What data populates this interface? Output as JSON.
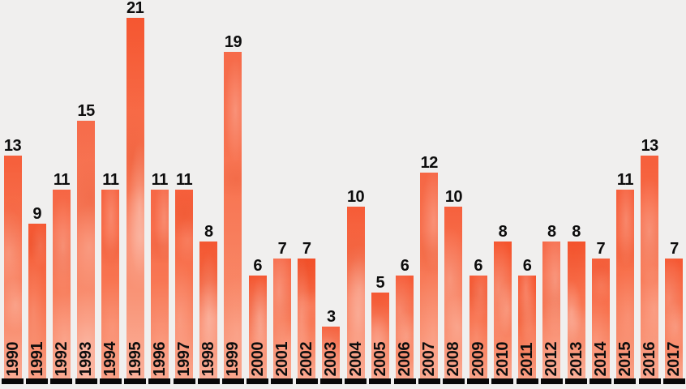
{
  "chart_data": {
    "type": "bar",
    "categories": [
      "1990",
      "1991",
      "1992",
      "1993",
      "1994",
      "1995",
      "1996",
      "1997",
      "1998",
      "1999",
      "2000",
      "2001",
      "2002",
      "2003",
      "2004",
      "2005",
      "2006",
      "2007",
      "2008",
      "2009",
      "2010",
      "2011",
      "2012",
      "2013",
      "2014",
      "2015",
      "2016",
      "2017"
    ],
    "values": [
      13,
      9,
      11,
      15,
      11,
      21,
      11,
      11,
      8,
      19,
      6,
      7,
      7,
      3,
      10,
      5,
      6,
      12,
      10,
      6,
      8,
      6,
      8,
      8,
      7,
      11,
      13,
      7
    ],
    "title": "",
    "xlabel": "",
    "ylabel": "",
    "ylim": [
      0,
      21
    ],
    "grid": false,
    "legend": "none",
    "bar_value_labels_shown": true,
    "x_tick_label_rotation_deg": -90,
    "x_tick_label_position": "inside-bar-bottom"
  },
  "palette": {
    "background": "#f0efee",
    "bar_gradient_top": "#f5512a",
    "bar_gradient_mid": "#f7653e",
    "bar_gradient_low": "#f87e5b",
    "bar_gradient_bottom": "#f99a7e",
    "watercolor_highlight": "255,255,255",
    "watercolor_shade": "210,45,5",
    "baseline_tick": "#070707",
    "value_label_text": "#0d0d0d",
    "year_label_text": "#0e0e0e"
  }
}
